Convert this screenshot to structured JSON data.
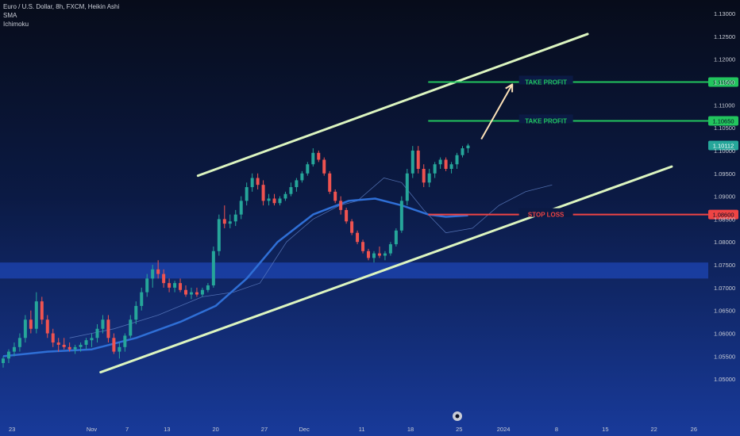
{
  "header": {
    "title": "Euro / U.S. Dollar, 8h, FXCM, Heikin Ashi",
    "indicators": [
      "SMA",
      "Ichimoku"
    ]
  },
  "colors": {
    "bg_top": "#070c1a",
    "bg_bottom": "#183a9a",
    "up": "#26a69a",
    "down": "#ef5350",
    "sma": "#2f6fd6",
    "ichimoku": "#5f7fc4",
    "channel": "#dcf5c0",
    "take_profit": "#22c55e",
    "stop_loss": "#ef4444",
    "arrow": "#fde2b8",
    "zone": "#1e46b4",
    "price_badge": "#26a69a"
  },
  "chart_data": {
    "type": "candlestick",
    "title": "Euro / U.S. Dollar, 8h, FXCM, Heikin Ashi",
    "price_axis": {
      "min": 1.045,
      "max": 1.13,
      "ticks": [
        "1.13000",
        "1.12500",
        "1.12000",
        "1.11500",
        "1.11000",
        "1.10500",
        "1.10000",
        "1.09500",
        "1.09000",
        "1.08500",
        "1.08000",
        "1.07500",
        "1.07000",
        "1.06500",
        "1.06000",
        "1.05500",
        "1.05000"
      ]
    },
    "time_axis": {
      "bar_range": [
        0,
        158
      ],
      "labels": [
        {
          "text": "23",
          "bar": 2
        },
        {
          "text": "Nov",
          "bar": 20
        },
        {
          "text": "7",
          "bar": 28
        },
        {
          "text": "13",
          "bar": 37
        },
        {
          "text": "20",
          "bar": 48
        },
        {
          "text": "27",
          "bar": 59
        },
        {
          "text": "Dec",
          "bar": 68
        },
        {
          "text": "11",
          "bar": 81
        },
        {
          "text": "18",
          "bar": 92
        },
        {
          "text": "25",
          "bar": 103
        },
        {
          "text": "2024",
          "bar": 113
        },
        {
          "text": "8",
          "bar": 125
        },
        {
          "text": "15",
          "bar": 136
        },
        {
          "text": "22",
          "bar": 147
        },
        {
          "text": "26",
          "bar": 156
        }
      ]
    },
    "candles": [
      [
        1.0535,
        1.055,
        1.0525,
        1.0545
      ],
      [
        1.0545,
        1.0565,
        1.0535,
        1.056
      ],
      [
        1.056,
        1.058,
        1.055,
        1.057
      ],
      [
        1.057,
        1.06,
        1.056,
        1.059
      ],
      [
        1.059,
        1.064,
        1.058,
        1.063
      ],
      [
        1.063,
        1.065,
        1.06,
        1.061
      ],
      [
        1.061,
        1.069,
        1.06,
        1.067
      ],
      [
        1.067,
        1.068,
        1.062,
        1.063
      ],
      [
        1.063,
        1.064,
        1.059,
        1.06
      ],
      [
        1.06,
        1.061,
        1.057,
        1.058
      ],
      [
        1.058,
        1.059,
        1.056,
        1.0575
      ],
      [
        1.0575,
        1.059,
        1.0565,
        1.057
      ],
      [
        1.057,
        1.058,
        1.056,
        1.0565
      ],
      [
        1.0565,
        1.0575,
        1.0555,
        1.057
      ],
      [
        1.057,
        1.058,
        1.056,
        1.0575
      ],
      [
        1.0575,
        1.059,
        1.0565,
        1.0585
      ],
      [
        1.0585,
        1.06,
        1.057,
        1.059
      ],
      [
        1.059,
        1.062,
        1.058,
        1.061
      ],
      [
        1.061,
        1.064,
        1.06,
        1.063
      ],
      [
        1.063,
        1.064,
        1.058,
        1.059
      ],
      [
        1.059,
        1.06,
        1.0555,
        1.056
      ],
      [
        1.056,
        1.058,
        1.0545,
        1.057
      ],
      [
        1.057,
        1.06,
        1.056,
        1.0595
      ],
      [
        1.0595,
        1.064,
        1.059,
        1.063
      ],
      [
        1.063,
        1.067,
        1.062,
        1.066
      ],
      [
        1.066,
        1.07,
        1.065,
        1.069
      ],
      [
        1.069,
        1.073,
        1.068,
        1.072
      ],
      [
        1.072,
        1.075,
        1.07,
        1.074
      ],
      [
        1.074,
        1.076,
        1.072,
        1.073
      ],
      [
        1.073,
        1.074,
        1.07,
        1.071
      ],
      [
        1.071,
        1.072,
        1.069,
        1.07
      ],
      [
        1.07,
        1.0715,
        1.069,
        1.071
      ],
      [
        1.071,
        1.072,
        1.069,
        1.0695
      ],
      [
        1.0695,
        1.0705,
        1.068,
        1.0685
      ],
      [
        1.0685,
        1.07,
        1.0675,
        1.069
      ],
      [
        1.069,
        1.07,
        1.068,
        1.0685
      ],
      [
        1.0685,
        1.07,
        1.068,
        1.0695
      ],
      [
        1.0695,
        1.071,
        1.069,
        1.0705
      ],
      [
        1.0705,
        1.079,
        1.07,
        1.078
      ],
      [
        1.078,
        1.086,
        1.077,
        1.085
      ],
      [
        1.085,
        1.088,
        1.083,
        1.084
      ],
      [
        1.084,
        1.086,
        1.083,
        1.0845
      ],
      [
        1.0845,
        1.087,
        1.0835,
        1.086
      ],
      [
        1.086,
        1.09,
        1.085,
        1.089
      ],
      [
        1.089,
        1.093,
        1.088,
        1.092
      ],
      [
        1.092,
        1.095,
        1.091,
        1.094
      ],
      [
        1.094,
        1.095,
        1.0915,
        1.0925
      ],
      [
        1.0925,
        1.0935,
        1.088,
        1.089
      ],
      [
        1.089,
        1.0905,
        1.088,
        1.0895
      ],
      [
        1.0895,
        1.0905,
        1.088,
        1.0885
      ],
      [
        1.0885,
        1.09,
        1.088,
        1.0895
      ],
      [
        1.0895,
        1.091,
        1.089,
        1.0905
      ],
      [
        1.0905,
        1.093,
        1.09,
        1.092
      ],
      [
        1.092,
        1.094,
        1.091,
        1.0935
      ],
      [
        1.0935,
        1.0955,
        1.093,
        1.095
      ],
      [
        1.095,
        1.0975,
        1.0945,
        1.097
      ],
      [
        1.097,
        1.1005,
        1.0965,
        1.0995
      ],
      [
        1.0995,
        1.1,
        1.0975,
        1.098
      ],
      [
        1.098,
        1.0985,
        1.0945,
        1.095
      ],
      [
        1.095,
        1.0955,
        1.0905,
        1.091
      ],
      [
        1.091,
        1.0915,
        1.0885,
        1.089
      ],
      [
        1.089,
        1.09,
        1.086,
        1.087
      ],
      [
        1.087,
        1.0875,
        1.084,
        1.0845
      ],
      [
        1.0845,
        1.085,
        1.0815,
        1.082
      ],
      [
        1.082,
        1.0825,
        1.0795,
        1.08
      ],
      [
        1.08,
        1.0805,
        1.0775,
        1.078
      ],
      [
        1.078,
        1.0785,
        1.076,
        1.0765
      ],
      [
        1.0765,
        1.078,
        1.0755,
        1.0775
      ],
      [
        1.0775,
        1.079,
        1.0765,
        1.077
      ],
      [
        1.077,
        1.078,
        1.076,
        1.0775
      ],
      [
        1.0775,
        1.08,
        1.077,
        1.0795
      ],
      [
        1.0795,
        1.083,
        1.079,
        1.0825
      ],
      [
        1.0825,
        1.09,
        1.082,
        1.089
      ],
      [
        1.089,
        1.096,
        1.088,
        1.095
      ],
      [
        1.095,
        1.101,
        1.094,
        1.1
      ],
      [
        1.1,
        1.101,
        1.095,
        1.096
      ],
      [
        1.096,
        1.097,
        1.092,
        1.093
      ],
      [
        1.093,
        1.096,
        1.092,
        1.095
      ],
      [
        1.095,
        1.0975,
        1.094,
        1.097
      ],
      [
        1.097,
        1.0985,
        1.096,
        1.098
      ],
      [
        1.098,
        1.0985,
        1.0955,
        1.096
      ],
      [
        1.096,
        1.0975,
        1.095,
        1.097
      ],
      [
        1.097,
        1.0995,
        1.096,
        1.099
      ],
      [
        1.099,
        1.101,
        1.0985,
        1.1005
      ],
      [
        1.1005,
        1.1015,
        1.0995,
        1.1011
      ]
    ],
    "candle_start_bar": 0,
    "candle_step": 1.25,
    "sma": [
      [
        0,
        1.055
      ],
      [
        10,
        1.056
      ],
      [
        20,
        1.0565
      ],
      [
        30,
        1.059
      ],
      [
        40,
        1.0625
      ],
      [
        48,
        1.066
      ],
      [
        55,
        1.072
      ],
      [
        62,
        1.08
      ],
      [
        70,
        1.086
      ],
      [
        78,
        1.089
      ],
      [
        84,
        1.0895
      ],
      [
        90,
        1.088
      ],
      [
        96,
        1.086
      ],
      [
        100,
        1.0855
      ],
      [
        105,
        1.0858
      ]
    ],
    "ichimoku_cloud": [
      [
        15,
        1.059
      ],
      [
        25,
        1.061
      ],
      [
        35,
        1.064
      ],
      [
        45,
        1.068
      ],
      [
        52,
        1.069
      ],
      [
        58,
        1.071
      ],
      [
        64,
        1.08
      ],
      [
        70,
        1.085
      ],
      [
        76,
        1.088
      ],
      [
        80,
        1.089
      ],
      [
        86,
        1.094
      ],
      [
        90,
        1.093
      ],
      [
        95,
        1.087
      ],
      [
        100,
        1.082
      ],
      [
        106,
        1.083
      ],
      [
        112,
        1.088
      ],
      [
        118,
        1.091
      ],
      [
        124,
        1.0925
      ]
    ],
    "channel": [
      {
        "from": [
          44,
          1.0945
        ],
        "to": [
          132,
          1.1255
        ]
      },
      {
        "from": [
          22,
          1.0515
        ],
        "to": [
          151,
          1.0965
        ]
      }
    ],
    "zone": {
      "from": 1.072,
      "to": 1.0755
    },
    "levels": [
      {
        "label": "TAKE PROFIT",
        "price": 1.115,
        "badge": "1.11500",
        "from_bar": 96,
        "kind": "tp"
      },
      {
        "label": "TAKE PROFIT",
        "price": 1.1065,
        "badge": "1.10650",
        "from_bar": 96,
        "kind": "tp"
      },
      {
        "label": "STOP LOSS",
        "price": 1.086,
        "badge": "1.08600",
        "from_bar": 96,
        "kind": "sl"
      }
    ],
    "last_price": "1.10112",
    "arrow": {
      "from": [
        108,
        1.1025
      ],
      "to": [
        115,
        1.1145
      ]
    }
  }
}
